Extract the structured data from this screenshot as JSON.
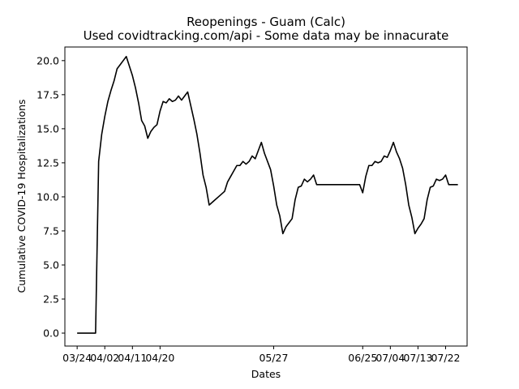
{
  "chart_data": {
    "type": "line",
    "title": "Reopenings - Guam (Calc)",
    "subtitle": "Used covidtracking.com/api - Some data may be innacurate",
    "xlabel": "Dates",
    "ylabel": "Cumulative COVID-19 Hospitalizations",
    "ylim": [
      -0.95,
      21.0
    ],
    "yticks": [
      0.0,
      2.5,
      5.0,
      7.5,
      10.0,
      12.5,
      15.0,
      17.5,
      20.0
    ],
    "ytick_labels": [
      "0.0",
      "2.5",
      "5.0",
      "7.5",
      "10.0",
      "12.5",
      "15.0",
      "17.5",
      "20.0"
    ],
    "xlim": [
      "2020-03-20",
      "2020-07-29"
    ],
    "xticks": [
      "2020-03-24",
      "2020-04-02",
      "2020-04-11",
      "2020-04-20",
      "2020-05-27",
      "2020-06-25",
      "2020-07-04",
      "2020-07-13",
      "2020-07-22"
    ],
    "xtick_labels": [
      "03/24",
      "04/02",
      "04/11",
      "04/20",
      "05/27",
      "06/25",
      "07/04",
      "07/13",
      "07/22"
    ],
    "grid": false,
    "series": [
      {
        "color": "#000000",
        "x": [
          "2020-03-24",
          "2020-03-25",
          "2020-03-26",
          "2020-03-27",
          "2020-03-28",
          "2020-03-29",
          "2020-03-30",
          "2020-03-31",
          "2020-04-01",
          "2020-04-02",
          "2020-04-03",
          "2020-04-04",
          "2020-04-05",
          "2020-04-06",
          "2020-04-07",
          "2020-04-08",
          "2020-04-09",
          "2020-04-10",
          "2020-04-11",
          "2020-04-12",
          "2020-04-13",
          "2020-04-14",
          "2020-04-15",
          "2020-04-16",
          "2020-04-17",
          "2020-04-18",
          "2020-04-19",
          "2020-04-20",
          "2020-04-21",
          "2020-04-22",
          "2020-04-23",
          "2020-04-24",
          "2020-04-25",
          "2020-04-26",
          "2020-04-27",
          "2020-04-28",
          "2020-04-29",
          "2020-04-30",
          "2020-05-01",
          "2020-05-02",
          "2020-05-03",
          "2020-05-04",
          "2020-05-05",
          "2020-05-06",
          "2020-05-07",
          "2020-05-08",
          "2020-05-09",
          "2020-05-10",
          "2020-05-11",
          "2020-05-12",
          "2020-05-13",
          "2020-05-14",
          "2020-05-15",
          "2020-05-16",
          "2020-05-17",
          "2020-05-18",
          "2020-05-19",
          "2020-05-20",
          "2020-05-21",
          "2020-05-22",
          "2020-05-23",
          "2020-05-24",
          "2020-05-25",
          "2020-05-26",
          "2020-05-27",
          "2020-05-28",
          "2020-05-29",
          "2020-05-30",
          "2020-05-31",
          "2020-06-01",
          "2020-06-02",
          "2020-06-03",
          "2020-06-04",
          "2020-06-05",
          "2020-06-06",
          "2020-06-07",
          "2020-06-08",
          "2020-06-09",
          "2020-06-10",
          "2020-06-11",
          "2020-06-12",
          "2020-06-13",
          "2020-06-14",
          "2020-06-15",
          "2020-06-16",
          "2020-06-17",
          "2020-06-18",
          "2020-06-19",
          "2020-06-20",
          "2020-06-21",
          "2020-06-22",
          "2020-06-23",
          "2020-06-24",
          "2020-06-25",
          "2020-06-26",
          "2020-06-27",
          "2020-06-28",
          "2020-06-29",
          "2020-06-30",
          "2020-07-01",
          "2020-07-02",
          "2020-07-03",
          "2020-07-04",
          "2020-07-05",
          "2020-07-06",
          "2020-07-07",
          "2020-07-08",
          "2020-07-09",
          "2020-07-10",
          "2020-07-11",
          "2020-07-12",
          "2020-07-13",
          "2020-07-14",
          "2020-07-15",
          "2020-07-16",
          "2020-07-17",
          "2020-07-18",
          "2020-07-19",
          "2020-07-20",
          "2020-07-21",
          "2020-07-22",
          "2020-07-23",
          "2020-07-24",
          "2020-07-25",
          "2020-07-26"
        ],
        "y": [
          0.0,
          0.0,
          0.0,
          0.0,
          0.0,
          0.0,
          0.0,
          12.6,
          14.6,
          15.9,
          17.0,
          17.8,
          18.5,
          19.4,
          19.7,
          20.0,
          20.3,
          19.6,
          18.9,
          18.0,
          16.9,
          15.6,
          15.2,
          14.3,
          14.8,
          15.1,
          15.3,
          16.3,
          17.0,
          16.9,
          17.2,
          17.0,
          17.1,
          17.4,
          17.1,
          17.4,
          17.7,
          16.7,
          15.7,
          14.6,
          13.2,
          11.6,
          10.7,
          9.4,
          9.6,
          9.8,
          10.0,
          10.2,
          10.4,
          11.1,
          11.5,
          11.9,
          12.3,
          12.3,
          12.6,
          12.4,
          12.6,
          13.0,
          12.8,
          13.4,
          14.0,
          13.2,
          12.6,
          12.0,
          10.8,
          9.4,
          8.6,
          7.3,
          7.8,
          8.1,
          8.4,
          9.8,
          10.7,
          10.8,
          11.3,
          11.1,
          11.3,
          11.6,
          10.9,
          10.9,
          10.9,
          10.9,
          10.9,
          10.9,
          10.9,
          10.9,
          10.9,
          10.9,
          10.9,
          10.9,
          10.9,
          10.9,
          10.9,
          10.3,
          11.5,
          12.3,
          12.3,
          12.6,
          12.5,
          12.6,
          13.0,
          12.9,
          13.4,
          14.0,
          13.3,
          12.8,
          12.1,
          10.9,
          9.4,
          8.5,
          7.3,
          7.7,
          8.0,
          8.4,
          9.8,
          10.7,
          10.8,
          11.3,
          11.2,
          11.3,
          11.6,
          10.9,
          10.9,
          10.9,
          10.9
        ]
      }
    ]
  }
}
